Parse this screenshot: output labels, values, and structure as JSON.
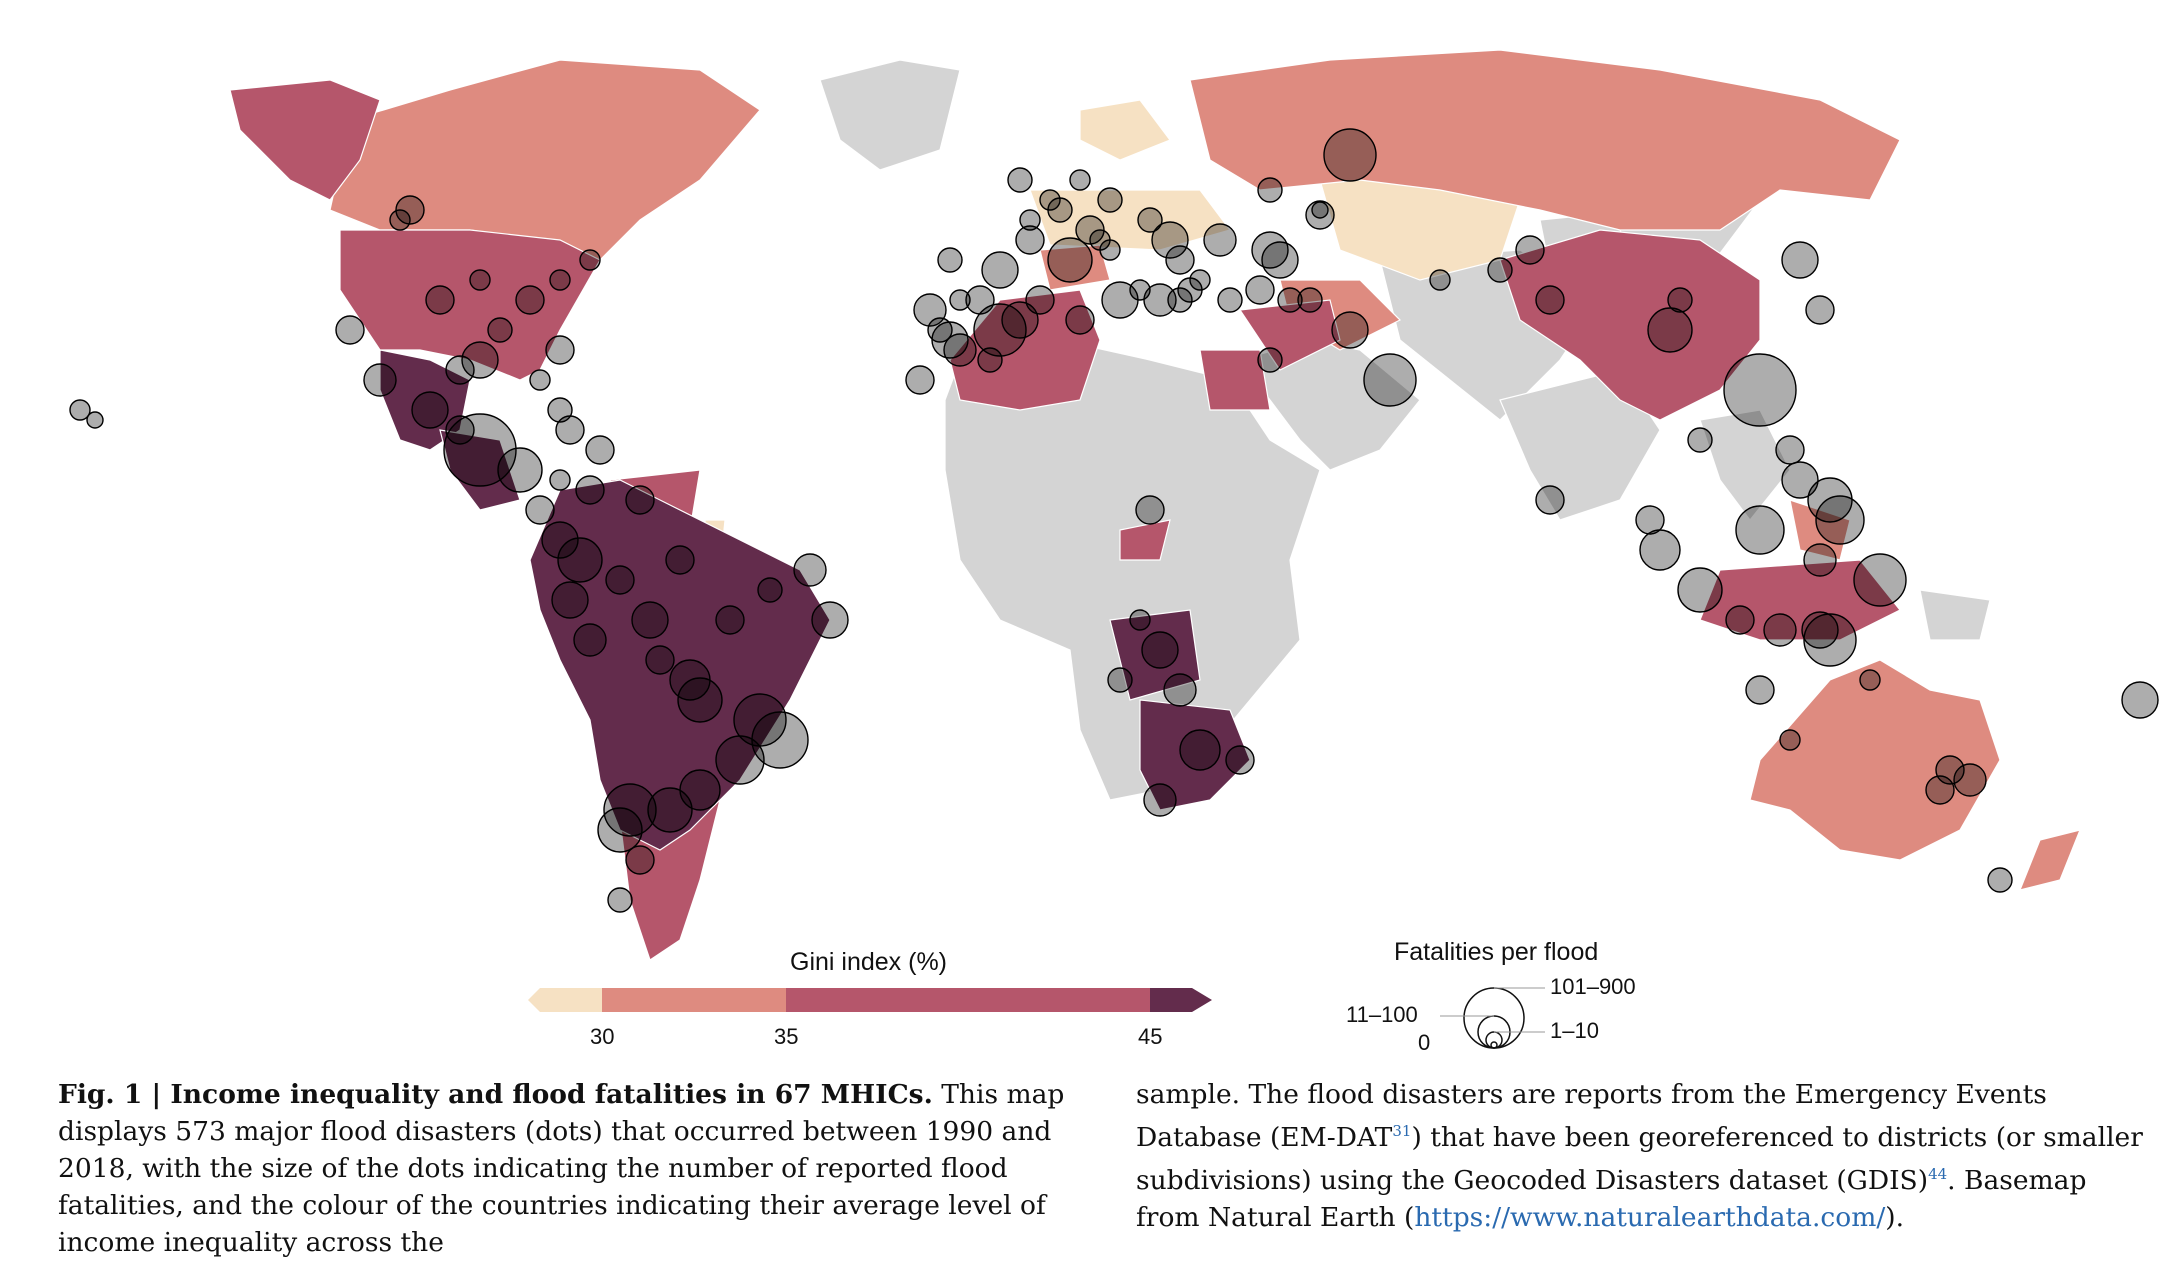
{
  "map": {
    "legend": {
      "gini_title": "Gini index (%)",
      "gini_ticks": [
        "30",
        "35",
        "45"
      ],
      "gini_colors": [
        "#f6e1c3",
        "#de8b80",
        "#b5566b",
        "#632c4c"
      ],
      "fatal_title": "Fatalities per flood",
      "fatal_labels": {
        "large": "101–900",
        "mid": "11–100",
        "small": "1–10",
        "zero": "0"
      }
    },
    "land_color": "#d4d4d4",
    "dot_style": "semi-transparent black circles"
  },
  "caption": {
    "fig_label": "Fig. 1 | Income inequality and flood fatalities in 67 MHICs.",
    "left_text": " This map displays 573 major flood disasters (dots) that occurred between 1990 and 2018, with the size of the dots indicating the number of reported flood fatalities, and the colour of the countries indicating their average level of income inequality across the",
    "right_p1": "sample. The flood disasters are reports from the Emergency Events Database (EM-DAT",
    "ref1": "31",
    "right_p2": ") that have been georeferenced to districts (or smaller subdivisions) using the Geocoded Disasters dataset (GDIS)",
    "ref2": "44",
    "right_p3": ". Basemap from Natural Earth (",
    "link": "https://www.naturalearthdata.com/",
    "right_p4": ")."
  }
}
